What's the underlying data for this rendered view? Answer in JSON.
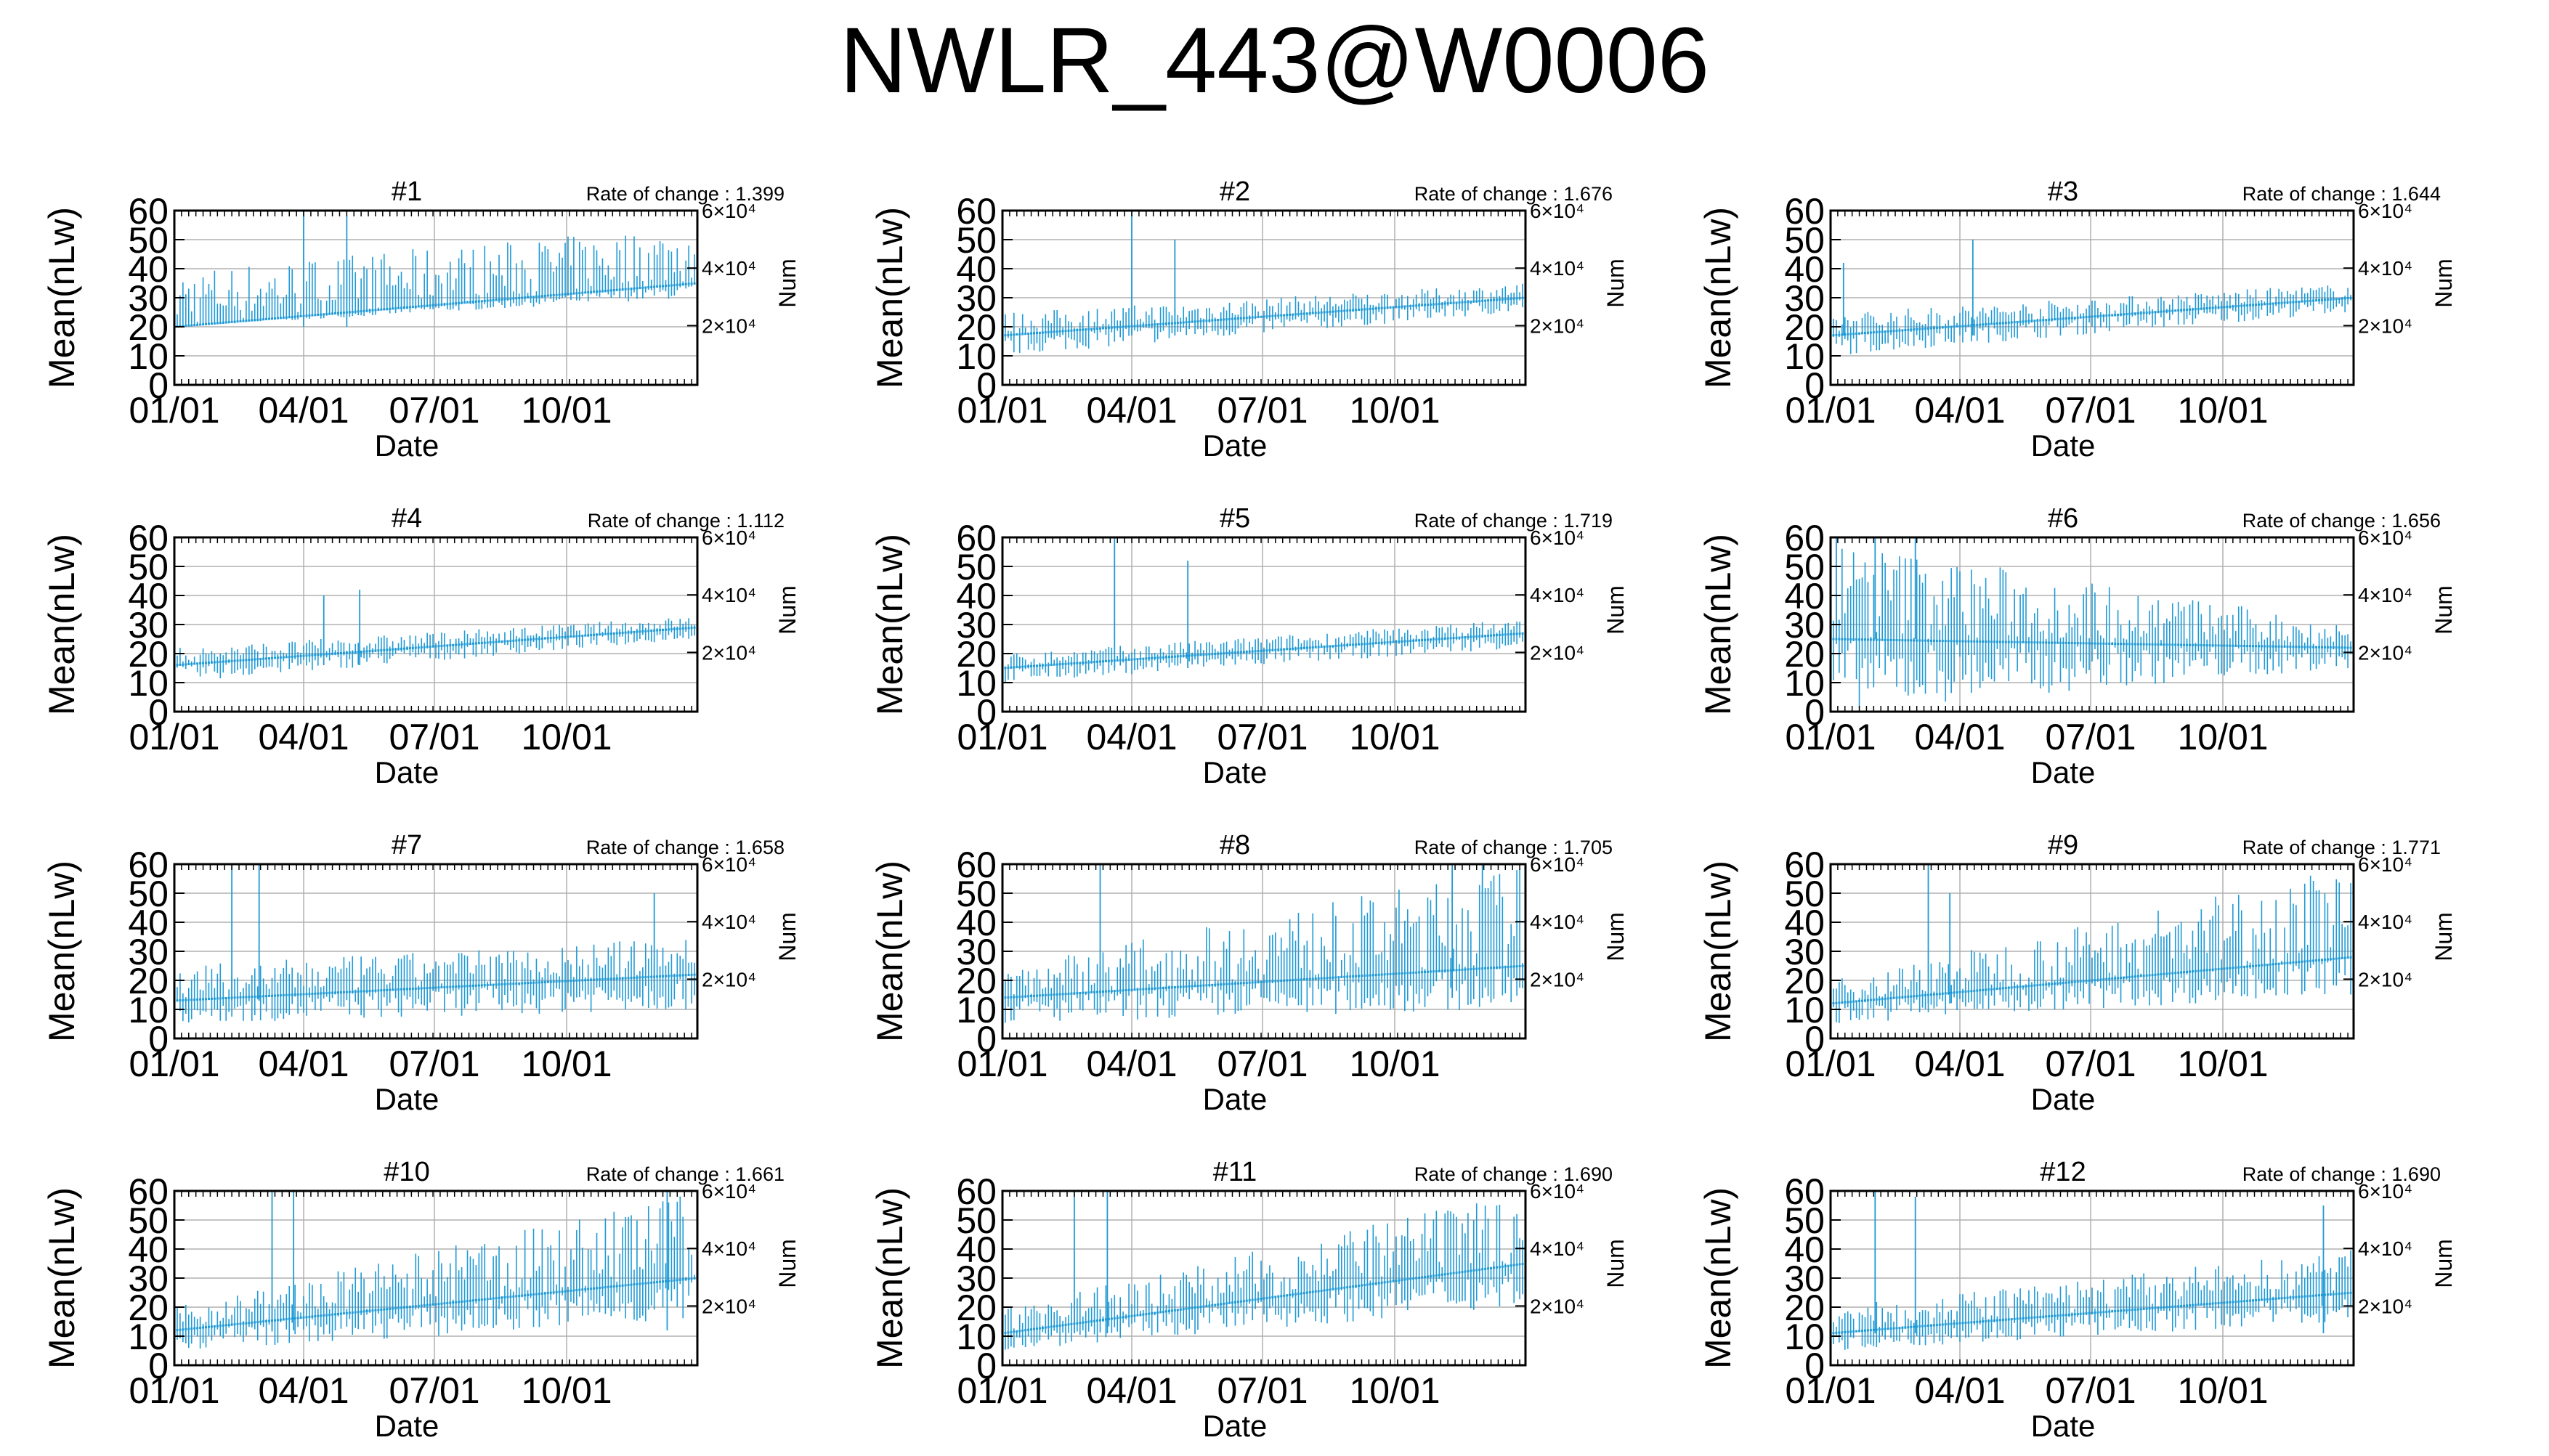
{
  "figure": {
    "title": "NWLR_443@W0006",
    "series_color": "#1f9ad6",
    "grid_color": "#b0b0b0"
  },
  "chart_data": [
    {
      "type": "scatter",
      "title": "#1",
      "annotation": "Rate of change : 1.399",
      "xlabel": "Date",
      "ylabel": "Mean(nLw)",
      "y2label": "Num",
      "xlim": [
        "01/01",
        "12/31"
      ],
      "xticks": [
        "01/01",
        "04/01",
        "07/01",
        "10/01"
      ],
      "ylim": [
        0,
        60
      ],
      "yticks": [
        0,
        10,
        20,
        30,
        40,
        50,
        60
      ],
      "y2ticks": [
        "2×10⁴",
        "4×10⁴",
        "6×10⁴"
      ],
      "grid": true,
      "range_start": [
        20,
        40
      ],
      "range_end": [
        30,
        55
      ],
      "mean_start": 20,
      "mean_end": 35,
      "spikes": [
        {
          "x": "04/01",
          "y": 60
        },
        {
          "x": "05/01",
          "y": 58
        }
      ]
    },
    {
      "type": "scatter",
      "title": "#2",
      "annotation": "Rate of change : 1.676",
      "xlabel": "Date",
      "ylabel": "Mean(nLw)",
      "y2label": "Num",
      "xlim": [
        "01/01",
        "12/31"
      ],
      "xticks": [
        "01/01",
        "04/01",
        "07/01",
        "10/01"
      ],
      "ylim": [
        0,
        60
      ],
      "yticks": [
        0,
        10,
        20,
        30,
        40,
        50,
        60
      ],
      "y2ticks": [
        "2×10⁴",
        "4×10⁴",
        "6×10⁴"
      ],
      "grid": true,
      "range_start": [
        10,
        25
      ],
      "range_end": [
        25,
        35
      ],
      "mean_start": 17,
      "mean_end": 30,
      "spikes": [
        {
          "x": "04/01",
          "y": 60
        },
        {
          "x": "05/01",
          "y": 50
        }
      ]
    },
    {
      "type": "scatter",
      "title": "#3",
      "annotation": "Rate of change : 1.644",
      "xlabel": "Date",
      "ylabel": "Mean(nLw)",
      "y2label": "Num",
      "xlim": [
        "01/01",
        "12/31"
      ],
      "xticks": [
        "01/01",
        "04/01",
        "07/01",
        "10/01"
      ],
      "ylim": [
        0,
        60
      ],
      "yticks": [
        0,
        10,
        20,
        30,
        40,
        50,
        60
      ],
      "y2ticks": [
        "2×10⁴",
        "4×10⁴",
        "6×10⁴"
      ],
      "grid": true,
      "range_start": [
        10,
        25
      ],
      "range_end": [
        25,
        35
      ],
      "mean_start": 17,
      "mean_end": 30,
      "spikes": [
        {
          "x": "01/10",
          "y": 42
        },
        {
          "x": "04/10",
          "y": 50
        }
      ]
    },
    {
      "type": "scatter",
      "title": "#4",
      "annotation": "Rate of change : 1.112",
      "xlabel": "Date",
      "ylabel": "Mean(nLw)",
      "y2label": "Num",
      "xlim": [
        "01/01",
        "12/31"
      ],
      "xticks": [
        "01/01",
        "04/01",
        "07/01",
        "10/01"
      ],
      "ylim": [
        0,
        60
      ],
      "yticks": [
        0,
        10,
        20,
        30,
        40,
        50,
        60
      ],
      "y2ticks": [
        "2×10⁴",
        "4×10⁴",
        "6×10⁴"
      ],
      "grid": true,
      "range_start": [
        10,
        22
      ],
      "range_end": [
        25,
        33
      ],
      "mean_start": 16,
      "mean_end": 29,
      "spikes": [
        {
          "x": "04/15",
          "y": 40
        },
        {
          "x": "05/10",
          "y": 42
        }
      ]
    },
    {
      "type": "scatter",
      "title": "#5",
      "annotation": "Rate of change : 1.719",
      "xlabel": "Date",
      "ylabel": "Mean(nLw)",
      "y2label": "Num",
      "xlim": [
        "01/01",
        "12/31"
      ],
      "xticks": [
        "01/01",
        "04/01",
        "07/01",
        "10/01"
      ],
      "ylim": [
        0,
        60
      ],
      "yticks": [
        0,
        10,
        20,
        30,
        40,
        50,
        60
      ],
      "y2ticks": [
        "2×10⁴",
        "4×10⁴",
        "6×10⁴"
      ],
      "grid": true,
      "range_start": [
        10,
        20
      ],
      "range_end": [
        22,
        32
      ],
      "mean_start": 15,
      "mean_end": 27,
      "spikes": [
        {
          "x": "03/20",
          "y": 60
        },
        {
          "x": "05/10",
          "y": 52
        }
      ]
    },
    {
      "type": "scatter",
      "title": "#6",
      "annotation": "Rate of change : 1.656",
      "xlabel": "Date",
      "ylabel": "Mean(nLw)",
      "y2label": "Num",
      "xlim": [
        "01/01",
        "12/31"
      ],
      "xticks": [
        "01/01",
        "04/01",
        "07/01",
        "10/01"
      ],
      "ylim": [
        0,
        60
      ],
      "yticks": [
        0,
        10,
        20,
        30,
        40,
        50,
        60
      ],
      "y2ticks": [
        "2×10⁴",
        "4×10⁴",
        "6×10⁴"
      ],
      "grid": true,
      "range_start": [
        0,
        60
      ],
      "range_end": [
        15,
        30
      ],
      "mean_start": 25,
      "mean_end": 22,
      "spikes": [
        {
          "x": "01/05",
          "y": 60
        },
        {
          "x": "02/01",
          "y": 60
        },
        {
          "x": "03/01",
          "y": 60
        }
      ]
    },
    {
      "type": "scatter",
      "title": "#7",
      "annotation": "Rate of change : 1.658",
      "xlabel": "Date",
      "ylabel": "Mean(nLw)",
      "y2label": "Num",
      "xlim": [
        "01/01",
        "12/31"
      ],
      "xticks": [
        "01/01",
        "04/01",
        "07/01",
        "10/01"
      ],
      "ylim": [
        0,
        60
      ],
      "yticks": [
        0,
        10,
        20,
        30,
        40,
        50,
        60
      ],
      "y2ticks": [
        "2×10⁴",
        "4×10⁴",
        "6×10⁴"
      ],
      "grid": true,
      "range_start": [
        5,
        25
      ],
      "range_end": [
        10,
        35
      ],
      "mean_start": 13,
      "mean_end": 22,
      "spikes": [
        {
          "x": "02/10",
          "y": 60
        },
        {
          "x": "03/01",
          "y": 60
        },
        {
          "x": "12/01",
          "y": 50
        }
      ]
    },
    {
      "type": "scatter",
      "title": "#8",
      "annotation": "Rate of change : 1.705",
      "xlabel": "Date",
      "ylabel": "Mean(nLw)",
      "y2label": "Num",
      "xlim": [
        "01/01",
        "12/31"
      ],
      "xticks": [
        "01/01",
        "04/01",
        "07/01",
        "10/01"
      ],
      "ylim": [
        0,
        60
      ],
      "yticks": [
        0,
        10,
        20,
        30,
        40,
        50,
        60
      ],
      "y2ticks": [
        "2×10⁴",
        "4×10⁴",
        "6×10⁴"
      ],
      "grid": true,
      "range_start": [
        5,
        25
      ],
      "range_end": [
        10,
        60
      ],
      "mean_start": 14,
      "mean_end": 25,
      "spikes": [
        {
          "x": "03/10",
          "y": 60
        },
        {
          "x": "11/10",
          "y": 60
        },
        {
          "x": "12/01",
          "y": 60
        }
      ]
    },
    {
      "type": "scatter",
      "title": "#9",
      "annotation": "Rate of change : 1.771",
      "xlabel": "Date",
      "ylabel": "Mean(nLw)",
      "y2label": "Num",
      "xlim": [
        "01/01",
        "12/31"
      ],
      "xticks": [
        "01/01",
        "04/01",
        "07/01",
        "10/01"
      ],
      "ylim": [
        0,
        60
      ],
      "yticks": [
        0,
        10,
        20,
        30,
        40,
        50,
        60
      ],
      "y2ticks": [
        "2×10⁴",
        "4×10⁴",
        "6×10⁴"
      ],
      "grid": true,
      "range_start": [
        5,
        20
      ],
      "range_end": [
        15,
        60
      ],
      "mean_start": 12,
      "mean_end": 28,
      "spikes": [
        {
          "x": "03/10",
          "y": 60
        },
        {
          "x": "03/25",
          "y": 50
        }
      ]
    },
    {
      "type": "scatter",
      "title": "#10",
      "annotation": "Rate of change : 1.661",
      "xlabel": "Date",
      "ylabel": "Mean(nLw)",
      "y2label": "Num",
      "xlim": [
        "01/01",
        "12/31"
      ],
      "xticks": [
        "01/01",
        "04/01",
        "07/01",
        "10/01"
      ],
      "ylim": [
        0,
        60
      ],
      "yticks": [
        0,
        10,
        20,
        30,
        40,
        50,
        60
      ],
      "y2ticks": [
        "2×10⁴",
        "4×10⁴",
        "6×10⁴"
      ],
      "grid": true,
      "range_start": [
        5,
        20
      ],
      "range_end": [
        15,
        60
      ],
      "mean_start": 12,
      "mean_end": 30,
      "spikes": [
        {
          "x": "03/10",
          "y": 60
        },
        {
          "x": "03/25",
          "y": 60
        },
        {
          "x": "12/10",
          "y": 60
        }
      ]
    },
    {
      "type": "scatter",
      "title": "#11",
      "annotation": "Rate of change : 1.690",
      "xlabel": "Date",
      "ylabel": "Mean(nLw)",
      "y2label": "Num",
      "xlim": [
        "01/01",
        "12/31"
      ],
      "xticks": [
        "01/01",
        "04/01",
        "07/01",
        "10/01"
      ],
      "ylim": [
        0,
        60
      ],
      "yticks": [
        0,
        10,
        20,
        30,
        40,
        50,
        60
      ],
      "y2ticks": [
        "2×10⁴",
        "4×10⁴",
        "6×10⁴"
      ],
      "grid": true,
      "range_start": [
        5,
        20
      ],
      "range_end": [
        20,
        60
      ],
      "mean_start": 11,
      "mean_end": 35,
      "spikes": [
        {
          "x": "02/20",
          "y": 60
        },
        {
          "x": "03/15",
          "y": 60
        }
      ]
    },
    {
      "type": "scatter",
      "title": "#12",
      "annotation": "Rate of change : 1.690",
      "xlabel": "Date",
      "ylabel": "Mean(nLw)",
      "y2label": "Num",
      "xlim": [
        "01/01",
        "12/31"
      ],
      "xticks": [
        "01/01",
        "04/01",
        "07/01",
        "10/01"
      ],
      "ylim": [
        0,
        60
      ],
      "yticks": [
        0,
        10,
        20,
        30,
        40,
        50,
        60
      ],
      "y2ticks": [
        "2×10⁴",
        "4×10⁴",
        "6×10⁴"
      ],
      "grid": true,
      "range_start": [
        5,
        20
      ],
      "range_end": [
        15,
        40
      ],
      "mean_start": 11,
      "mean_end": 25,
      "spikes": [
        {
          "x": "02/01",
          "y": 60
        },
        {
          "x": "03/01",
          "y": 58
        },
        {
          "x": "12/10",
          "y": 55
        }
      ]
    }
  ]
}
